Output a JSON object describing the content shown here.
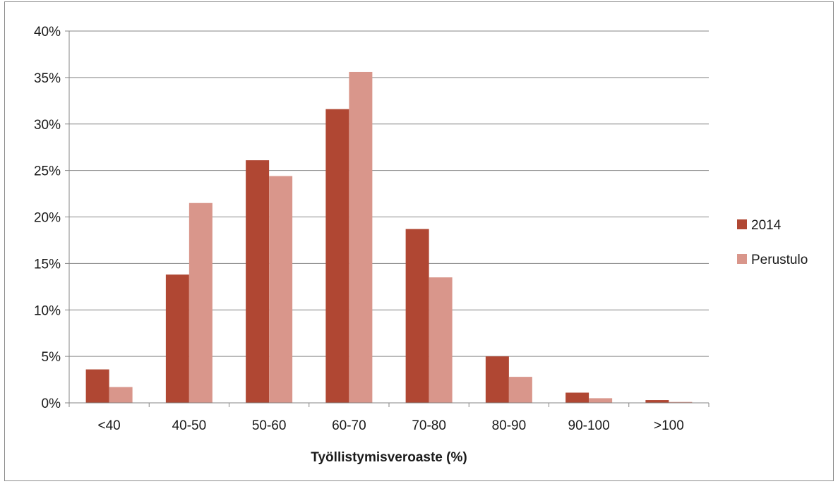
{
  "chart_data": {
    "type": "bar",
    "title": "",
    "xlabel": "Työllistymisveroaste (%)",
    "ylabel": "",
    "categories": [
      "<40",
      "40-50",
      "50-60",
      "60-70",
      "70-80",
      "80-90",
      "90-100",
      ">100"
    ],
    "series": [
      {
        "name": "2014",
        "color": "#b04733",
        "values": [
          3.6,
          13.8,
          26.1,
          31.6,
          18.7,
          5.0,
          1.1,
          0.3
        ]
      },
      {
        "name": "Perustulo",
        "color": "#d9968b",
        "values": [
          1.7,
          21.5,
          24.4,
          35.6,
          13.5,
          2.8,
          0.5,
          0.1
        ]
      }
    ],
    "ylim": [
      0,
      40
    ],
    "yticks": [
      0,
      5,
      10,
      15,
      20,
      25,
      30,
      35,
      40
    ],
    "ytick_labels": [
      "0%",
      "5%",
      "10%",
      "15%",
      "20%",
      "25%",
      "30%",
      "35%",
      "40%"
    ],
    "grid": true,
    "legend_position": "right"
  }
}
